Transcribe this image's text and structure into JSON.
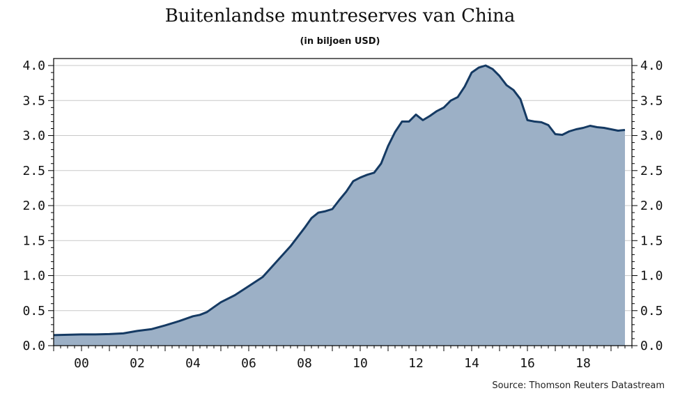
{
  "header": {
    "title": "Buitenlandse muntreserves van China",
    "subtitle": "(in biljoen USD)"
  },
  "footer": {
    "source": "Source: Thomson Reuters Datastream"
  },
  "colors": {
    "line": "#153a63",
    "fill": "#9cb0c6",
    "grid": "#c8c8c8",
    "axis": "#000000"
  },
  "chart_data": {
    "type": "area",
    "title": "Buitenlandse muntreserves van China",
    "subtitle": "(in biljoen USD)",
    "xlabel": "",
    "ylabel": "",
    "x_tick_labels": [
      "00",
      "02",
      "04",
      "06",
      "08",
      "10",
      "12",
      "14",
      "16",
      "18"
    ],
    "x_tick_years": [
      2000,
      2002,
      2004,
      2006,
      2008,
      2010,
      2012,
      2014,
      2016,
      2018
    ],
    "y_tick_labels": [
      "0.0",
      "0.5",
      "1.0",
      "1.5",
      "2.0",
      "2.5",
      "3.0",
      "3.5",
      "4.0"
    ],
    "y_tick_values": [
      0,
      0.5,
      1.0,
      1.5,
      2.0,
      2.5,
      3.0,
      3.5,
      4.0
    ],
    "xlim": [
      1999,
      2019.75
    ],
    "ylim": [
      0,
      4.1
    ],
    "grid": "horizontal",
    "y_axis_both_sides": true,
    "series": [
      {
        "x": [
          1999.0,
          1999.5,
          2000.0,
          2000.5,
          2001.0,
          2001.5,
          2002.0,
          2002.5,
          2003.0,
          2003.5,
          2004.0,
          2004.25,
          2004.5,
          2004.75,
          2005.0,
          2005.5,
          2006.0,
          2006.5,
          2007.0,
          2007.5,
          2008.0,
          2008.25,
          2008.5,
          2008.75,
          2009.0,
          2009.25,
          2009.5,
          2009.75,
          2010.0,
          2010.25,
          2010.5,
          2010.75,
          2011.0,
          2011.25,
          2011.5,
          2011.75,
          2012.0,
          2012.25,
          2012.5,
          2012.75,
          2013.0,
          2013.25,
          2013.5,
          2013.75,
          2014.0,
          2014.25,
          2014.5,
          2014.75,
          2015.0,
          2015.25,
          2015.5,
          2015.75,
          2016.0,
          2016.25,
          2016.5,
          2016.75,
          2017.0,
          2017.25,
          2017.5,
          2017.75,
          2018.0,
          2018.25,
          2018.5,
          2018.75,
          2019.0,
          2019.25,
          2019.5
        ],
        "y": [
          0.15,
          0.155,
          0.16,
          0.16,
          0.165,
          0.175,
          0.21,
          0.235,
          0.29,
          0.35,
          0.42,
          0.44,
          0.48,
          0.55,
          0.62,
          0.72,
          0.85,
          0.98,
          1.2,
          1.42,
          1.68,
          1.82,
          1.9,
          1.92,
          1.95,
          2.08,
          2.2,
          2.35,
          2.4,
          2.44,
          2.47,
          2.6,
          2.85,
          3.05,
          3.2,
          3.2,
          3.3,
          3.22,
          3.28,
          3.35,
          3.4,
          3.5,
          3.55,
          3.7,
          3.9,
          3.97,
          4.0,
          3.95,
          3.85,
          3.72,
          3.65,
          3.52,
          3.22,
          3.2,
          3.19,
          3.15,
          3.02,
          3.01,
          3.06,
          3.09,
          3.11,
          3.14,
          3.12,
          3.11,
          3.09,
          3.07,
          3.08
        ]
      }
    ]
  }
}
